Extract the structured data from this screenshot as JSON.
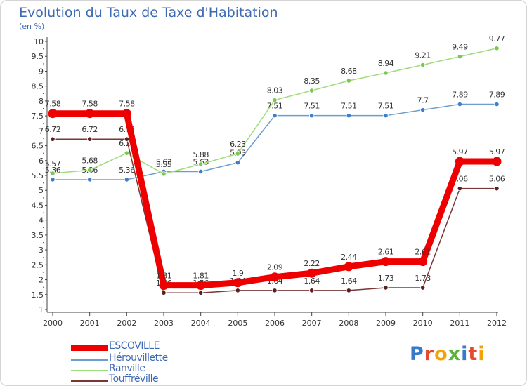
{
  "title": "Evolution du Taux de Taxe d'Habitation",
  "subtitle": "(en %)",
  "logo": {
    "text": "Proxiti",
    "colors": [
      "#3a78c9",
      "#e8482e",
      "#f4a20a",
      "#58b33a",
      "#3a78c9",
      "#e8482e",
      "#f4a20a"
    ]
  },
  "chart_data": {
    "type": "line",
    "x": [
      "2000",
      "2001",
      "2002",
      "2003",
      "2004",
      "2005",
      "2006",
      "2007",
      "2008",
      "2009",
      "2010",
      "2011",
      "2012"
    ],
    "ylim": [
      1,
      10
    ],
    "yticks": [
      "1",
      "1.5",
      "2",
      "2.5",
      "3",
      "3.5",
      "4",
      "4.5",
      "5",
      "5.5",
      "6",
      "6.5",
      "7",
      "7.5",
      "8",
      "8.5",
      "9",
      "9.5",
      "10"
    ],
    "grid": false,
    "legend": "bottom-left",
    "series": [
      {
        "name": "Hérouvillette",
        "color": "#6b9ed0",
        "marker": "#3f7fc8",
        "values": [
          5.36,
          5.36,
          5.36,
          5.63,
          5.63,
          5.93,
          7.51,
          7.51,
          7.51,
          7.51,
          7.7,
          7.89,
          7.89
        ],
        "labels": [
          "5.36",
          "5.36",
          "5.36",
          "5.63",
          "5.63",
          "5.93",
          "7.51",
          "7.51",
          "7.51",
          "7.51",
          "7.7",
          "7.89",
          "7.89"
        ]
      },
      {
        "name": "Ranville",
        "color": "#9fdc7a",
        "marker": "#7bc74f",
        "values": [
          5.57,
          5.68,
          6.25,
          5.55,
          5.88,
          6.23,
          8.03,
          8.35,
          8.68,
          8.94,
          9.21,
          9.49,
          9.77
        ],
        "labels": [
          "5.57",
          "5.68",
          "6.25",
          "5.55",
          "5.88",
          "6.23",
          "8.03",
          "8.35",
          "8.68",
          "8.94",
          "9.21",
          "9.49",
          "9.77"
        ]
      },
      {
        "name": "Touffréville",
        "color": "#7b3636",
        "marker": "#5a1f1f",
        "values": [
          6.72,
          6.72,
          6.72,
          1.56,
          1.56,
          1.64,
          1.64,
          1.64,
          1.64,
          1.73,
          1.73,
          5.06,
          5.06
        ],
        "labels": [
          "6.72",
          "6.72",
          "6.72",
          "1.56",
          "1.56",
          "1.64",
          "1.64",
          "1.64",
          "1.64",
          "1.73",
          "1.73",
          "5.06",
          "5.06"
        ]
      },
      {
        "name": "ESCOVILLE",
        "color": "#ee0000",
        "marker": "#ee0000",
        "values": [
          7.58,
          7.58,
          7.58,
          1.81,
          1.81,
          1.9,
          2.09,
          2.22,
          2.44,
          2.61,
          2.61,
          5.97,
          5.97
        ],
        "labels": [
          "7.58",
          "7.58",
          "7.58",
          "1.81",
          "1.81",
          "1.9",
          "2.09",
          "2.22",
          "2.44",
          "2.61",
          "2.61",
          "5.97",
          "5.97"
        ]
      }
    ],
    "legend_entries": [
      "ESCOVILLE",
      "Hérouvillette",
      "Ranville",
      "Touffréville"
    ]
  }
}
